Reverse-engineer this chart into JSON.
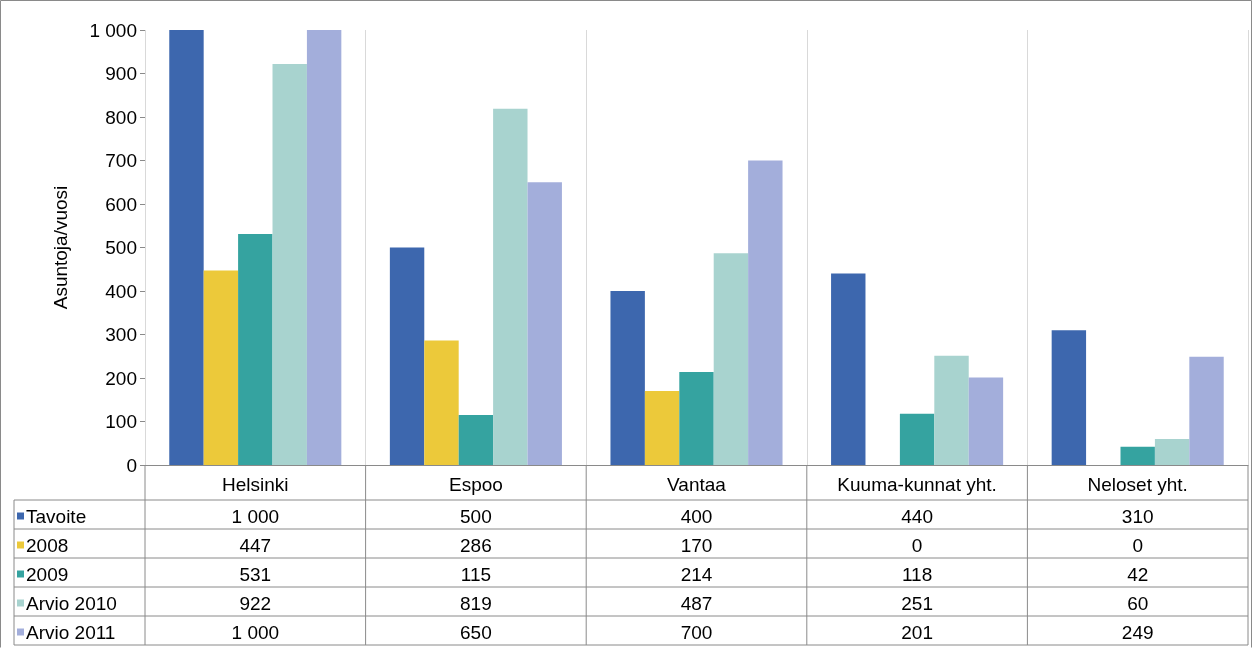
{
  "chart_data": {
    "type": "bar",
    "ylabel": "Asuntoja/vuosi",
    "categories": [
      "Helsinki",
      "Espoo",
      "Vantaa",
      "Kuuma-kunnat yht.",
      "Neloset yht."
    ],
    "ylim": [
      0,
      1000
    ],
    "yticks": [
      0,
      100,
      200,
      300,
      400,
      500,
      600,
      700,
      800,
      900,
      {
        "value": 1000,
        "label": "1 000"
      }
    ],
    "grid": "x",
    "legend": "bottom left",
    "series": [
      {
        "name": "Tavoite",
        "color": "#3d67ae",
        "values": [
          1000,
          500,
          400,
          440,
          310
        ],
        "value_labels": [
          "1 000",
          "500",
          "400",
          "440",
          "310"
        ]
      },
      {
        "name": "2008",
        "color": "#ecc93a",
        "values": [
          447,
          286,
          170,
          0,
          0
        ],
        "value_labels": [
          "447",
          "286",
          "170",
          "0",
          "0"
        ]
      },
      {
        "name": "2009",
        "color": "#35a3a0",
        "values": [
          531,
          115,
          214,
          118,
          42
        ],
        "value_labels": [
          "531",
          "115",
          "214",
          "118",
          "42"
        ]
      },
      {
        "name": "Arvio 2010",
        "color": "#a8d3cf",
        "values": [
          922,
          819,
          487,
          251,
          60
        ],
        "value_labels": [
          "922",
          "819",
          "487",
          "251",
          "60"
        ]
      },
      {
        "name": "Arvio 2011",
        "color": "#a3aedb",
        "values": [
          1000,
          650,
          700,
          201,
          249
        ],
        "value_labels": [
          "1 000",
          "650",
          "700",
          "201",
          "249"
        ]
      }
    ]
  }
}
